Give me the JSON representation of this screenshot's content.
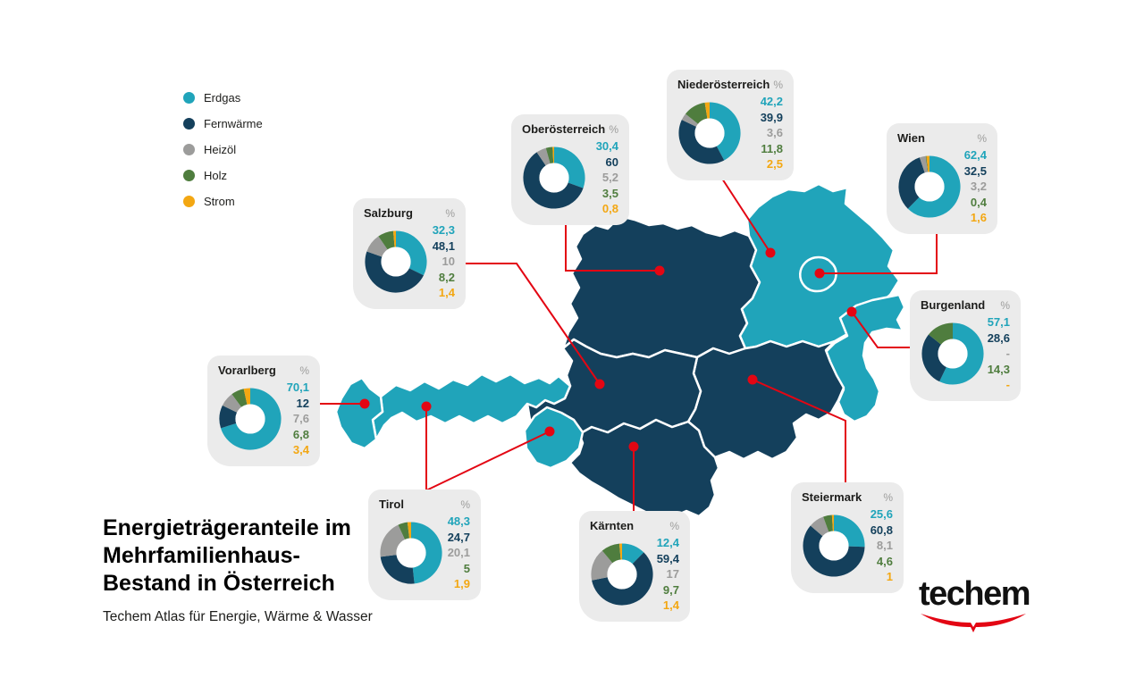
{
  "title": {
    "lines": [
      "Energieträgeranteile im",
      "Mehrfamilienhaus-",
      "Bestand in Österreich"
    ]
  },
  "subtitle": "Techem Atlas für Energie, Wärme & Wasser",
  "logo_text": "techem",
  "percent_symbol": "%",
  "colors": {
    "erdgas": "#20A4BA",
    "fernwaerme": "#14405C",
    "heizoel": "#9C9C9B",
    "holz": "#4F7D3E",
    "strom": "#F3A712",
    "red": "#E30613",
    "card_bg": "#EBEBEB",
    "muted": "#9D9D9C"
  },
  "legend": {
    "items": [
      {
        "label": "Erdgas"
      },
      {
        "label": "Fernwärme"
      },
      {
        "label": "Heizöl"
      },
      {
        "label": "Holz"
      },
      {
        "label": "Strom"
      }
    ]
  },
  "states": [
    {
      "name": "Niederösterreich",
      "values": [
        "42,2",
        "39,9",
        "3,6",
        "11,8",
        "2,5"
      ]
    },
    {
      "name": "Oberösterreich",
      "values": [
        "30,4",
        "60",
        "5,2",
        "3,5",
        "0,8"
      ]
    },
    {
      "name": "Wien",
      "values": [
        "62,4",
        "32,5",
        "3,2",
        "0,4",
        "1,6"
      ]
    },
    {
      "name": "Salzburg",
      "values": [
        "32,3",
        "48,1",
        "10",
        "8,2",
        "1,4"
      ]
    },
    {
      "name": "Burgenland",
      "values": [
        "57,1",
        "28,6",
        "-",
        "14,3",
        "-"
      ]
    },
    {
      "name": "Vorarlberg",
      "values": [
        "70,1",
        "12",
        "7,6",
        "6,8",
        "3,4"
      ]
    },
    {
      "name": "Tirol",
      "values": [
        "48,3",
        "24,7",
        "20,1",
        "5",
        "1,9"
      ]
    },
    {
      "name": "Kärnten",
      "values": [
        "12,4",
        "59,4",
        "17",
        "9,7",
        "1,4"
      ]
    },
    {
      "name": "Steiermark",
      "values": [
        "25,6",
        "60,8",
        "8,1",
        "4,6",
        "1"
      ]
    }
  ],
  "chart_data": {
    "type": "pie",
    "title": "Energieträgeranteile im Mehrfamilienhaus-Bestand in Österreich",
    "subtitle": "Techem Atlas für Energie, Wärme & Wasser",
    "unit": "%",
    "categories": [
      "Erdgas",
      "Fernwärme",
      "Heizöl",
      "Holz",
      "Strom"
    ],
    "legend_position": "top-left",
    "series": [
      {
        "name": "Niederösterreich",
        "values": [
          42.2,
          39.9,
          3.6,
          11.8,
          2.5
        ]
      },
      {
        "name": "Oberösterreich",
        "values": [
          30.4,
          60,
          5.2,
          3.5,
          0.8
        ]
      },
      {
        "name": "Wien",
        "values": [
          62.4,
          32.5,
          3.2,
          0.4,
          1.6
        ]
      },
      {
        "name": "Salzburg",
        "values": [
          32.3,
          48.1,
          10,
          8.2,
          1.4
        ]
      },
      {
        "name": "Burgenland",
        "values": [
          57.1,
          28.6,
          0,
          14.3,
          0
        ]
      },
      {
        "name": "Vorarlberg",
        "values": [
          70.1,
          12,
          7.6,
          6.8,
          3.4
        ]
      },
      {
        "name": "Tirol",
        "values": [
          48.3,
          24.7,
          20.1,
          5,
          1.9
        ]
      },
      {
        "name": "Kärnten",
        "values": [
          12.4,
          59.4,
          17,
          9.7,
          1.4
        ]
      },
      {
        "name": "Steiermark",
        "values": [
          25.6,
          60.8,
          8.1,
          4.6,
          1
        ]
      }
    ]
  }
}
